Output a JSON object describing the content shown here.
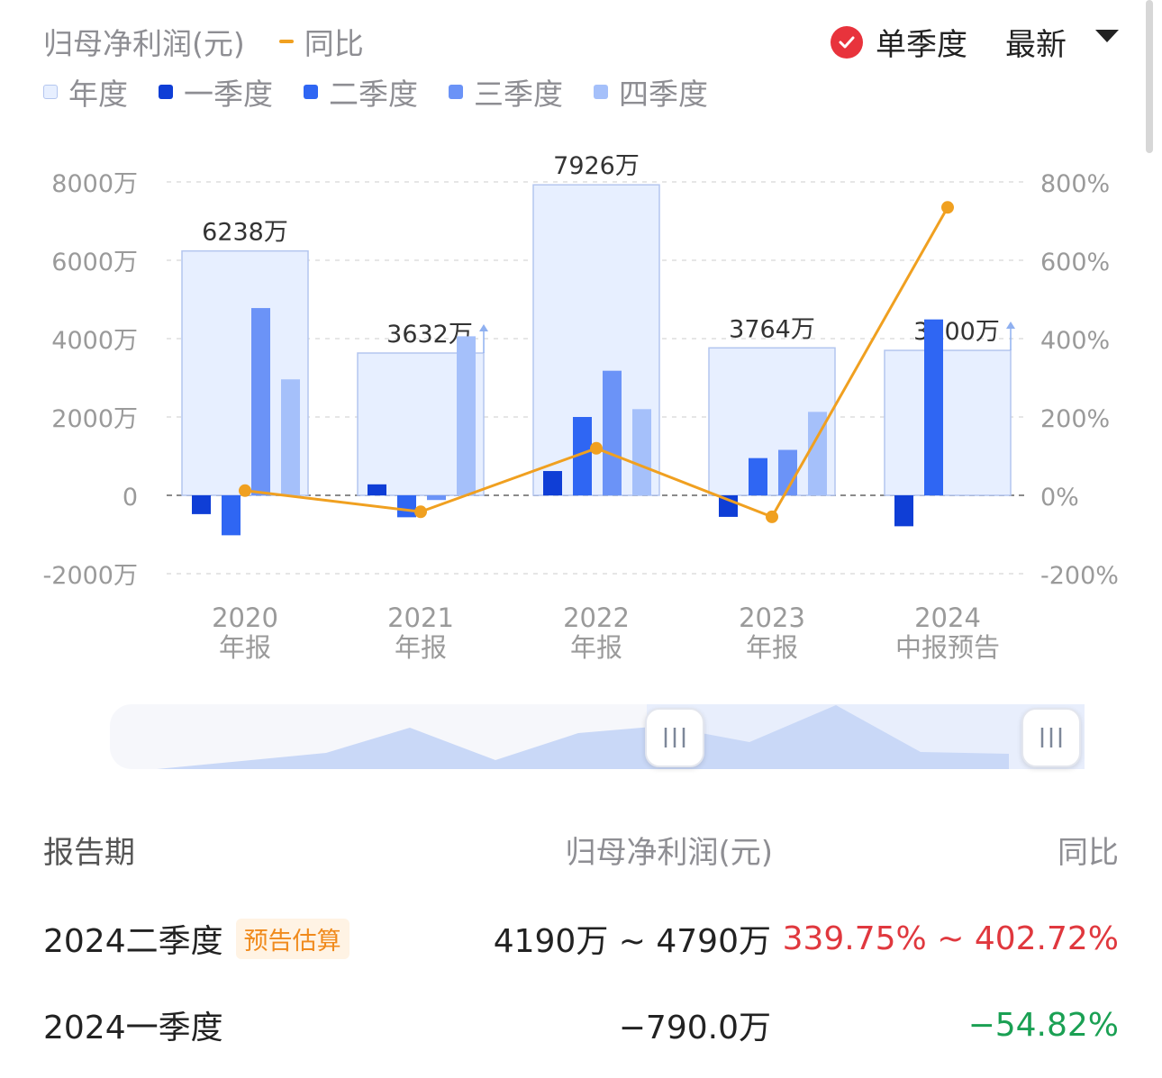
{
  "legend": {
    "metric": "归母净利润(元)",
    "yoy": "同比",
    "items": [
      {
        "label": "年度",
        "color": "#e7efff",
        "border": "#b4c6ef"
      },
      {
        "label": "一季度",
        "color": "#0f3ed6"
      },
      {
        "label": "二季度",
        "color": "#2f66f3"
      },
      {
        "label": "三季度",
        "color": "#6b93f7"
      },
      {
        "label": "四季度",
        "color": "#a5c0fa"
      }
    ]
  },
  "controls": {
    "mode": "单季度",
    "sort": "最新"
  },
  "colors": {
    "line": "#f0a020",
    "annual_fill": "#e7efff",
    "annual_border": "#b4c6ef"
  },
  "chart_data": {
    "type": "bar",
    "categories": [
      [
        "2020",
        "年报"
      ],
      [
        "2021",
        "年报"
      ],
      [
        "2022",
        "年报"
      ],
      [
        "2023",
        "年报"
      ],
      [
        "2024",
        "中报预告"
      ]
    ],
    "y_left": {
      "ticks": [
        "8000万",
        "6000万",
        "4000万",
        "2000万",
        "0",
        "-2000万"
      ],
      "tick_values": [
        8000,
        6000,
        4000,
        2000,
        0,
        -2000
      ],
      "unit": "万"
    },
    "y_right": {
      "ticks": [
        "800%",
        "600%",
        "400%",
        "200%",
        "0%",
        "-200%"
      ],
      "tick_values": [
        800,
        600,
        400,
        200,
        0,
        -200
      ]
    },
    "annual": {
      "values": [
        6238,
        3632,
        7926,
        3764,
        3700
      ],
      "labels": [
        "6238万",
        "3632万",
        "7926万",
        "3764万",
        "3700万"
      ],
      "estimated": [
        false,
        true,
        false,
        false,
        true
      ]
    },
    "series": [
      {
        "name": "一季度",
        "values": [
          -480,
          280,
          620,
          -550,
          -790
        ]
      },
      {
        "name": "二季度",
        "values": [
          -1020,
          -560,
          2000,
          950,
          4490
        ]
      },
      {
        "name": "三季度",
        "values": [
          4780,
          -120,
          3180,
          1160,
          null
        ]
      },
      {
        "name": "四季度",
        "values": [
          2960,
          4060,
          2200,
          2130,
          null
        ]
      }
    ],
    "yoy": {
      "name": "同比",
      "values": [
        12,
        -42,
        120,
        -55,
        735
      ]
    },
    "grid": true
  },
  "table": {
    "headers": [
      "报告期",
      "归母净利润(元)",
      "同比"
    ],
    "rows": [
      {
        "period": "2024二季度",
        "tag": "预告估算",
        "value": "4190万 ~ 4790万",
        "yoy": "339.75% ~ 402.72%",
        "yoy_color": "red"
      },
      {
        "period": "2024一季度",
        "tag": "",
        "value": "−790.0万",
        "yoy": "−54.82%",
        "yoy_color": "green"
      }
    ]
  }
}
